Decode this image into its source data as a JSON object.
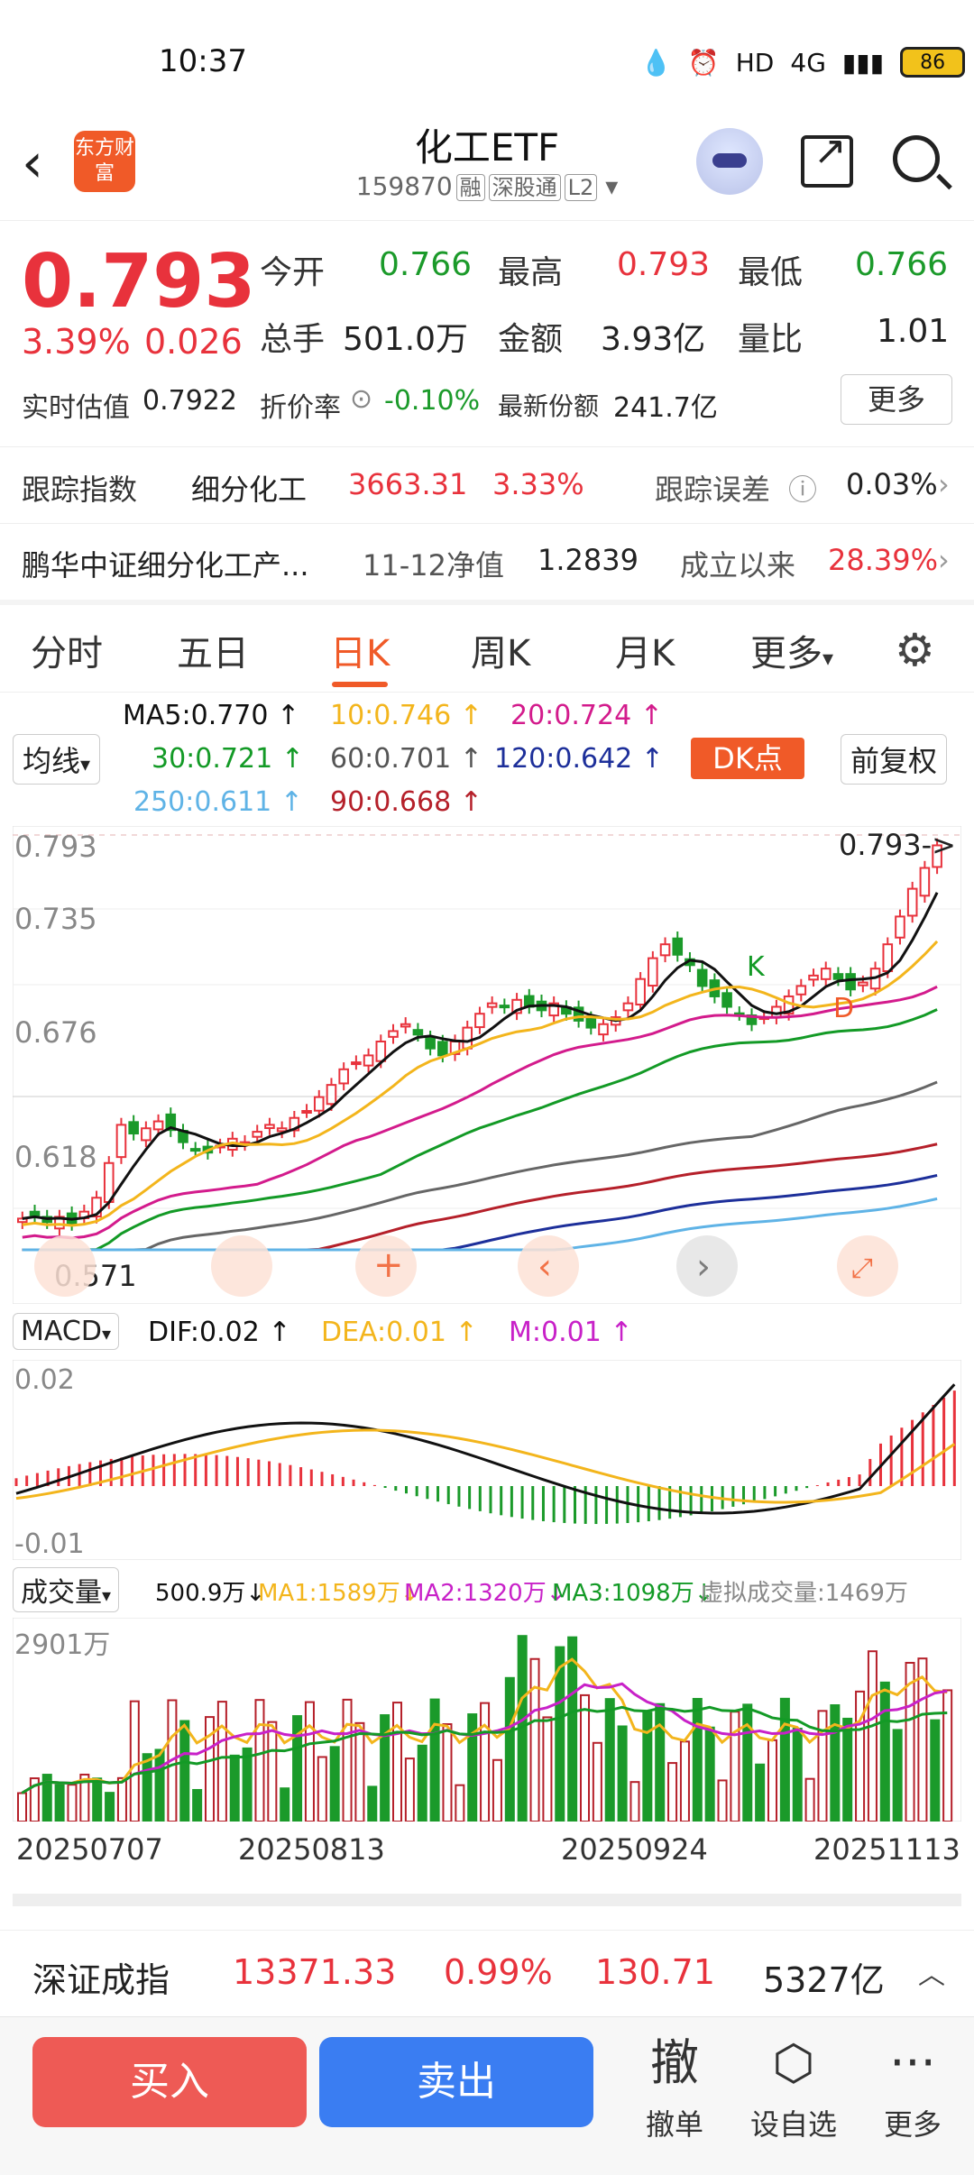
{
  "status": {
    "time": "10:37",
    "network": "4G",
    "battery": "86"
  },
  "header": {
    "title": "化工ETF",
    "code": "159870",
    "tags": [
      "融",
      "深股通",
      "L2"
    ],
    "logo_text": "东方财富"
  },
  "quote": {
    "price": "0.793",
    "change_pct": "3.39%",
    "change": "0.026",
    "open_label": "今开",
    "open": "0.766",
    "high_label": "最高",
    "high": "0.793",
    "low_label": "最低",
    "low": "0.766",
    "volume_label": "总手",
    "volume": "501.0万",
    "amount_label": "金额",
    "amount": "3.93亿",
    "ratio_label": "量比",
    "ratio": "1.01",
    "iopv_label": "实时估值",
    "iopv": "0.7922",
    "premium_label": "折价率",
    "premium": "-0.10%",
    "shares_label": "最新份额",
    "shares": "241.7亿",
    "more_label": "更多"
  },
  "tracking": {
    "label": "跟踪指数",
    "index_name": "细分化工",
    "index_value": "3663.31",
    "index_pct": "3.33%",
    "error_label": "跟踪误差",
    "error_value": "0.03%"
  },
  "fund": {
    "name": "鹏华中证细分化工产...",
    "nav_label": "11-12净值",
    "nav": "1.2839",
    "since_label": "成立以来",
    "since_value": "28.39%"
  },
  "tabs": [
    "分时",
    "五日",
    "日K",
    "周K",
    "月K",
    "更多"
  ],
  "ma_legend": {
    "selector": "均线",
    "ma5": "MA5:0.770",
    "ma10": "10:0.746",
    "ma20": "20:0.724",
    "ma30": "30:0.721",
    "ma60": "60:0.701",
    "ma120": "120:0.642",
    "ma250": "250:0.611",
    "ma90": "90:0.668",
    "dk_label": "DK点",
    "adjust_label": "前复权"
  },
  "colors": {
    "up": "#e8323c",
    "down": "#1b9a2a",
    "ma5": "#111111",
    "ma10": "#f3b51c",
    "ma20": "#d31b8c",
    "ma30": "#139a26",
    "ma60": "#666666",
    "ma120": "#1d2f9a",
    "ma250": "#5fb3e6",
    "ma90": "#b5202a"
  },
  "chart_data": [
    {
      "type": "candlestick",
      "title": "日K",
      "y_ticks": [
        "0.793",
        "0.735",
        "0.676",
        "0.618"
      ],
      "bottom_label": "0.571",
      "last_label": "0.793->",
      "annotations": [
        "K",
        "D"
      ],
      "ylim": [
        0.56,
        0.8
      ],
      "closes": [
        0.578,
        0.58,
        0.576,
        0.579,
        0.575,
        0.582,
        0.59,
        0.61,
        0.632,
        0.627,
        0.63,
        0.634,
        0.629,
        0.622,
        0.618,
        0.616,
        0.62,
        0.624,
        0.622,
        0.628,
        0.632,
        0.63,
        0.636,
        0.64,
        0.648,
        0.655,
        0.664,
        0.668,
        0.672,
        0.68,
        0.686,
        0.69,
        0.684,
        0.676,
        0.672,
        0.68,
        0.688,
        0.696,
        0.702,
        0.7,
        0.704,
        0.7,
        0.698,
        0.702,
        0.696,
        0.692,
        0.688,
        0.69,
        0.694,
        0.702,
        0.716,
        0.728,
        0.736,
        0.73,
        0.724,
        0.712,
        0.706,
        0.7,
        0.696,
        0.69,
        0.694,
        0.7,
        0.706,
        0.712,
        0.718,
        0.722,
        0.716,
        0.71,
        0.714,
        0.722,
        0.736,
        0.752,
        0.768,
        0.78,
        0.793
      ]
    },
    {
      "type": "line",
      "title": "MACD",
      "selector": "MACD",
      "dif": "DIF:0.02",
      "dea": "DEA:0.01",
      "m": "M:0.01",
      "y_ticks": [
        "0.02",
        "-0.01"
      ]
    },
    {
      "type": "bar",
      "title": "成交量",
      "selector": "成交量",
      "vol": "500.9万",
      "ma1": "MA1:1589万",
      "ma2": "MA2:1320万",
      "ma3": "MA3:1098万",
      "virtual": "虚拟成交量:1469万",
      "y_tick": "2901万",
      "x_ticks": [
        "20250707",
        "20250813",
        "20250924",
        "20251113"
      ]
    }
  ],
  "index_bar": {
    "name": "深证成指",
    "value": "13371.33",
    "pct": "0.99%",
    "change": "130.71",
    "amount": "5327亿"
  },
  "actions": {
    "buy": "买入",
    "sell": "卖出",
    "cancel": "撤单",
    "cancel_icon": "撤",
    "watch": "设自选",
    "more": "更多"
  }
}
